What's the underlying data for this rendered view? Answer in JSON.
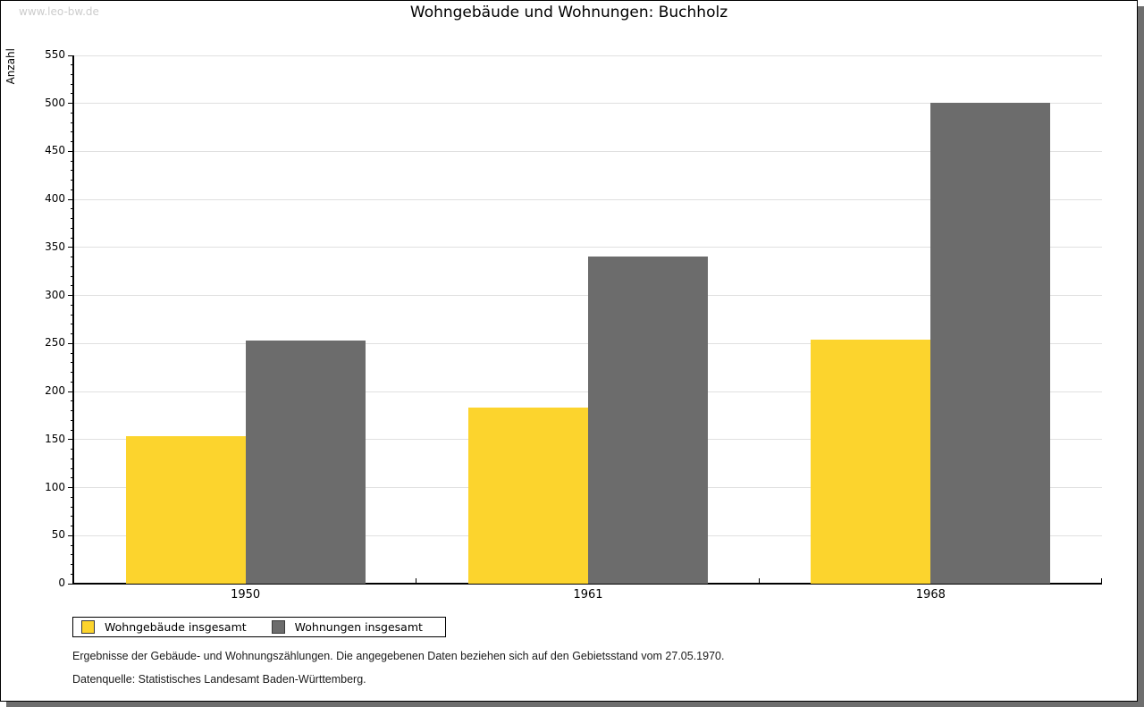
{
  "watermark": "www.leo-bw.de",
  "title": "Wohngebäude und Wohnungen: Buchholz",
  "chart_data": {
    "type": "bar",
    "title": "Wohngebäude und Wohnungen: Buchholz",
    "xlabel": "",
    "ylabel": "Anzahl",
    "categories": [
      "1950",
      "1961",
      "1968"
    ],
    "series": [
      {
        "name": "Wohngebäude insgesamt",
        "color": "#FCD42D",
        "values": [
          154,
          183,
          254
        ]
      },
      {
        "name": "Wohnungen insgesamt",
        "color": "#6C6C6C",
        "values": [
          253,
          341,
          501
        ]
      }
    ],
    "ylim": [
      0,
      550
    ],
    "y_major_step": 50,
    "y_minor_step": 10,
    "grid": true,
    "legend_position": "bottom-left"
  },
  "colors": {
    "axis": "#000000",
    "grid": "#e0e0e0",
    "shadow": "#6e6e6e",
    "watermark": "#cccccc"
  },
  "footnotes": [
    "Ergebnisse der Gebäude- und Wohnungszählungen. Die angegebenen Daten beziehen sich auf den Gebietsstand vom 27.05.1970.",
    "Datenquelle: Statistisches Landesamt Baden-Württemberg."
  ]
}
